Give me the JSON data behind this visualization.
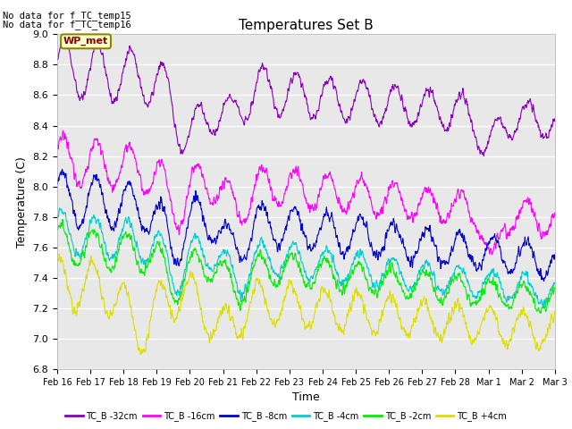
{
  "title": "Temperatures Set B",
  "ylabel": "Temperature (C)",
  "xlabel": "Time",
  "ylim": [
    6.8,
    9.0
  ],
  "yticks": [
    6.8,
    7.0,
    7.2,
    7.4,
    7.6,
    7.8,
    8.0,
    8.2,
    8.4,
    8.6,
    8.8,
    9.0
  ],
  "xtick_labels": [
    "Feb 16",
    "Feb 17",
    "Feb 18",
    "Feb 19",
    "Feb 20",
    "Feb 21",
    "Feb 22",
    "Feb 23",
    "Feb 24",
    "Feb 25",
    "Feb 26",
    "Feb 27",
    "Feb 28",
    "Mar 1",
    "Mar 2",
    "Mar 3"
  ],
  "no_data_text1": "No data for f_TC_temp15",
  "no_data_text2": "No data for f_TC_temp16",
  "wp_met_label": "WP_met",
  "legend_entries": [
    "TC_B -32cm",
    "TC_B -16cm",
    "TC_B -8cm",
    "TC_B -4cm",
    "TC_B -2cm",
    "TC_B +4cm"
  ],
  "colors": {
    "TC_B -32cm": "#8800bb",
    "TC_B -16cm": "#ff00ff",
    "TC_B -8cm": "#0000cc",
    "TC_B -4cm": "#00cccc",
    "TC_B -2cm": "#00ee00",
    "TC_B +4cm": "#dddd00"
  },
  "fig_bg": "#ffffff",
  "plot_bg": "#e8e8e8",
  "grid_color": "#ffffff",
  "n_points": 1500
}
